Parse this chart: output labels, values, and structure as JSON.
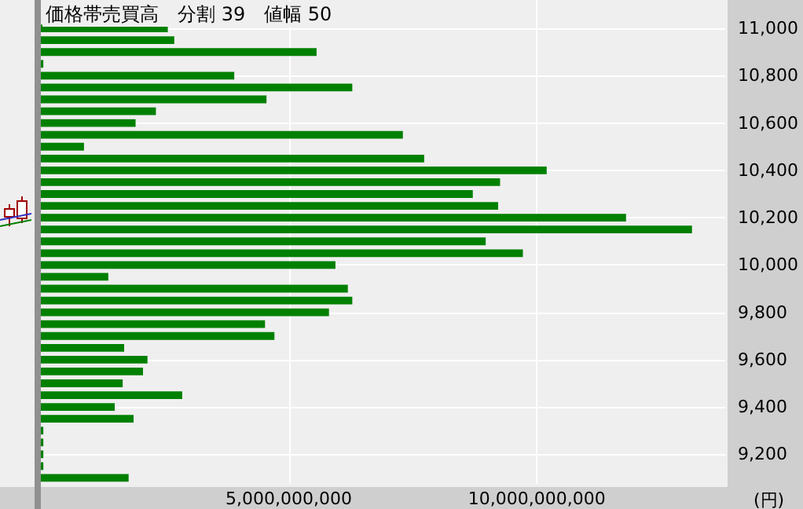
{
  "chart_data": {
    "type": "bar",
    "orientation": "horizontal",
    "title": "価格帯売買高　分割 39　値幅 50",
    "xlabel": "(円)",
    "x": [
      11000,
      10950,
      10900,
      10850,
      10800,
      10750,
      10700,
      10650,
      10600,
      10550,
      10500,
      10450,
      10400,
      10350,
      10300,
      10250,
      10200,
      10150,
      10100,
      10050,
      10000,
      9950,
      9900,
      9850,
      9800,
      9750,
      9700,
      9650,
      9600,
      9550,
      9500,
      9450,
      9400,
      9350,
      9300,
      9250,
      9200,
      9150,
      9100
    ],
    "values": [
      2560000000,
      2690000000,
      5560000000,
      50000000,
      3900000000,
      6280000000,
      4550000000,
      2320000000,
      1910000000,
      7300000000,
      870000000,
      7730000000,
      10200000000,
      9260000000,
      8710000000,
      9220000000,
      11800000000,
      13130000000,
      8970000000,
      9720000000,
      5940000000,
      1360000000,
      6190000000,
      6280000000,
      5810000000,
      4520000000,
      4710000000,
      1680000000,
      2150000000,
      2060000000,
      1650000000,
      2850000000,
      1490000000,
      1870000000,
      50000000,
      50000000,
      50000000,
      50000000,
      1770000000
    ],
    "color": "#008000",
    "xlim": [
      0,
      13800000000
    ],
    "xticks": [
      {
        "value": 5000000000,
        "label": "5,000,000,000"
      },
      {
        "value": 10000000000,
        "label": "10,000,000,000"
      }
    ],
    "ylim": [
      9075,
      11120
    ],
    "yticks": [
      {
        "value": 9200,
        "label": "9,200"
      },
      {
        "value": 9400,
        "label": "9,400"
      },
      {
        "value": 9600,
        "label": "9,600"
      },
      {
        "value": 9800,
        "label": "9,800"
      },
      {
        "value": 10000,
        "label": "10,000"
      },
      {
        "value": 10200,
        "label": "10,200"
      },
      {
        "value": 10400,
        "label": "10,400"
      },
      {
        "value": 10600,
        "label": "10,600"
      },
      {
        "value": 10800,
        "label": "10,800"
      },
      {
        "value": 11000,
        "label": "11,000"
      }
    ],
    "grid": true
  }
}
